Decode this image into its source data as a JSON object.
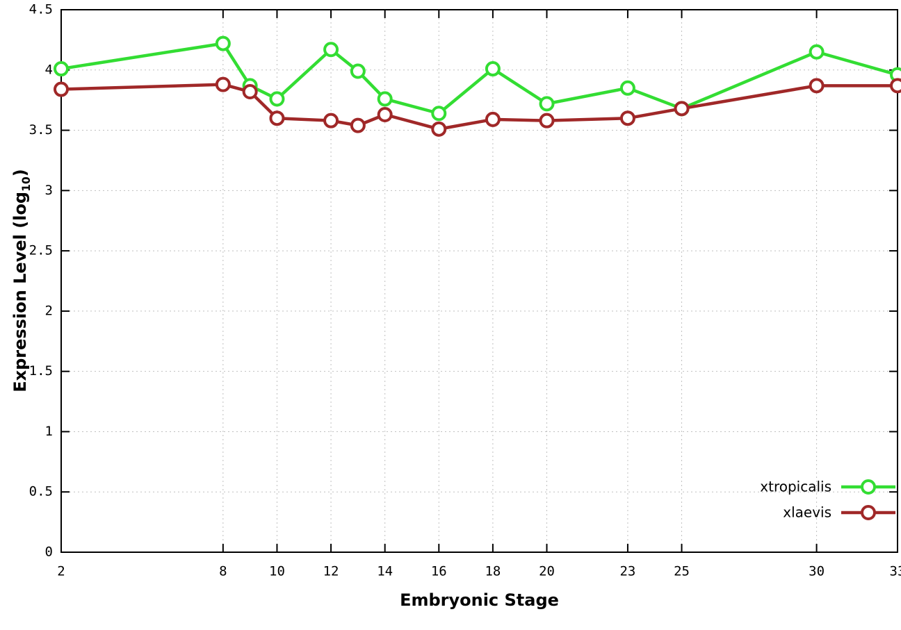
{
  "chart_data": {
    "type": "line",
    "title": "",
    "xlabel": "Embryonic Stage",
    "ylabel": "Expression Level (log10)",
    "ylabel_main": "Expression Level (log",
    "ylabel_sub": "10",
    "ylabel_close": ")",
    "x": [
      2,
      8,
      9,
      10,
      12,
      13,
      14,
      16,
      18,
      20,
      23,
      25,
      30,
      33
    ],
    "series": [
      {
        "name": "xtropicalis",
        "color": "#33dd33",
        "values": [
          4.01,
          4.22,
          3.87,
          3.76,
          4.17,
          3.99,
          3.76,
          3.64,
          4.01,
          3.72,
          3.85,
          3.68,
          4.15,
          3.96
        ]
      },
      {
        "name": "xlaevis",
        "color": "#a02828",
        "values": [
          3.84,
          3.88,
          3.82,
          3.6,
          3.58,
          3.54,
          3.63,
          3.51,
          3.59,
          3.58,
          3.6,
          3.68,
          3.87,
          3.87
        ]
      }
    ],
    "xlim": [
      2,
      33
    ],
    "ylim": [
      0,
      4.5
    ],
    "xticks": [
      2,
      8,
      10,
      12,
      14,
      16,
      18,
      20,
      23,
      25,
      30,
      33
    ],
    "yticks": [
      0,
      0.5,
      1,
      1.5,
      2,
      2.5,
      3,
      3.5,
      4,
      4.5
    ],
    "ytick_labels": [
      "0",
      "0.5",
      "1",
      "1.5",
      "2",
      "2.5",
      "3",
      "3.5",
      "4",
      "4.5"
    ],
    "grid": true,
    "legend_position": "bottom-right",
    "background_color": "#ffffff",
    "grid_color": "#bfbfbf",
    "axis_color": "#000000",
    "marker": "open-circle"
  }
}
